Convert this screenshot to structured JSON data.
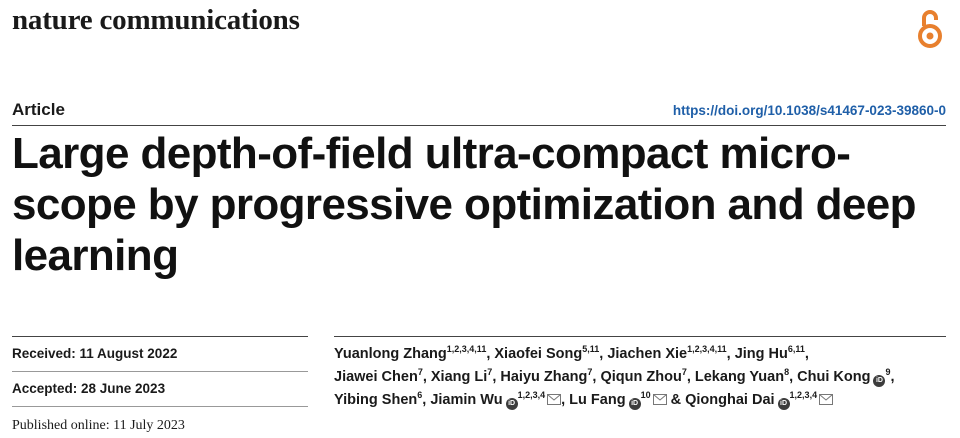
{
  "journal": {
    "name": "nature communications"
  },
  "header": {
    "article_type": "Article",
    "doi": "https://doi.org/10.1038/s41467-023-39860-0"
  },
  "title": "Large depth-of-field ultra-compact micro-scope by progressive optimization and deep learning",
  "dates": {
    "received": "Received: 11 August 2022",
    "accepted": "Accepted: 28 June 2023",
    "published": "Published online: 11 July 2023"
  },
  "authors": [
    {
      "name": "Yuanlong Zhang",
      "aff": "1,2,3,4,11"
    },
    {
      "name": "Xiaofei Song",
      "aff": "5,11"
    },
    {
      "name": "Jiachen Xie",
      "aff": "1,2,3,4,11"
    },
    {
      "name": "Jing Hu",
      "aff": "6,11"
    },
    {
      "name": "Jiawei Chen",
      "aff": "7"
    },
    {
      "name": "Xiang Li",
      "aff": "7"
    },
    {
      "name": "Haiyu Zhang",
      "aff": "7"
    },
    {
      "name": "Qiqun Zhou",
      "aff": "7"
    },
    {
      "name": "Lekang Yuan",
      "aff": "8"
    },
    {
      "name": "Chui Kong",
      "aff": "9"
    },
    {
      "name": "Yibing Shen",
      "aff": "6"
    },
    {
      "name": "Jiamin Wu",
      "aff": "1,2,3,4"
    },
    {
      "name": "Lu Fang",
      "aff": "10"
    },
    {
      "name": "Qionghai Dai",
      "aff": "1,2,3,4"
    }
  ],
  "separators": {
    "comma": ",",
    "and": "&"
  },
  "icons": {
    "open_access": "open-access-icon",
    "orcid": "orcid-icon",
    "mail": "mail-icon",
    "orcid_glyph": "iD"
  },
  "colors": {
    "doi_link": "#1f5fa8",
    "open_access": "#e8802e"
  }
}
